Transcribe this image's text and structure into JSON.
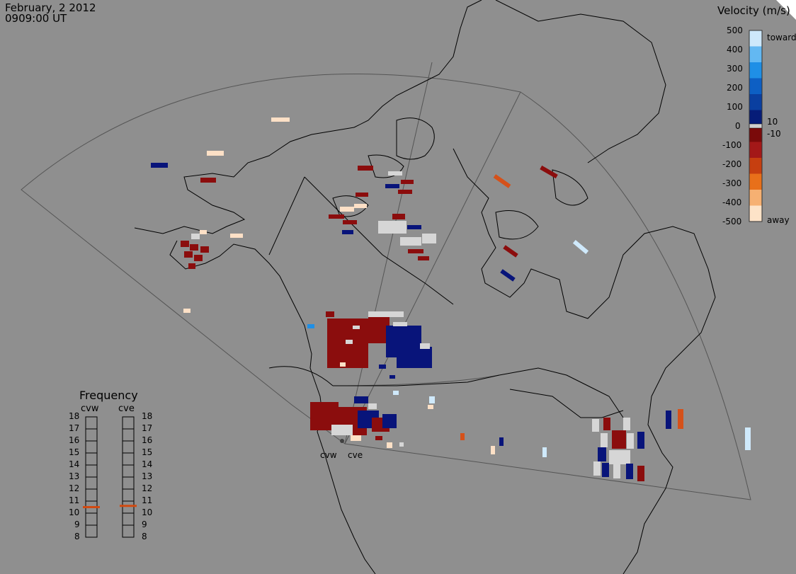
{
  "header": {
    "date": "February, 2 2012",
    "time": "0909:00 UT"
  },
  "velocity_scale": {
    "title": "Velocity (m/s)",
    "ticks": [
      "500",
      "400",
      "300",
      "200",
      "100",
      "0",
      "-100",
      "-200",
      "-300",
      "-400",
      "-500"
    ],
    "side_labels": {
      "toward": "toward",
      "plus10": "10",
      "minus10": "-10",
      "away": "away"
    },
    "colors": [
      "#cde8fb",
      "#63b8f2",
      "#1f8fe6",
      "#0d5fc4",
      "#0a3fa0",
      "#061c78",
      "#7a0a0a",
      "#a31818",
      "#c63f10",
      "#e8701a",
      "#f6b072",
      "#fde3c8"
    ],
    "zero_band": "#cfcfcf"
  },
  "frequency": {
    "title": "Frequency",
    "radars": [
      "cvw",
      "cve"
    ],
    "ticks": [
      "18",
      "17",
      "16",
      "15",
      "14",
      "13",
      "12",
      "11",
      "10",
      "9",
      "8"
    ],
    "range_mhz": [
      8,
      18
    ],
    "current_mhz": {
      "cvw": 10.5,
      "cve": 10.6
    },
    "marker_color": "#d24a10"
  },
  "radar_labels": [
    "cvw",
    "cve"
  ],
  "colors": {
    "background": "#8f8f8f",
    "coast": "#000000",
    "fov": "#404040",
    "away_dark": "#8b0d0d",
    "toward_dark": "#08147a",
    "ground": "#d6d6d6",
    "away_light": "#fde0c6",
    "toward_light": "#cfe9fb",
    "orange": "#d5511a"
  }
}
